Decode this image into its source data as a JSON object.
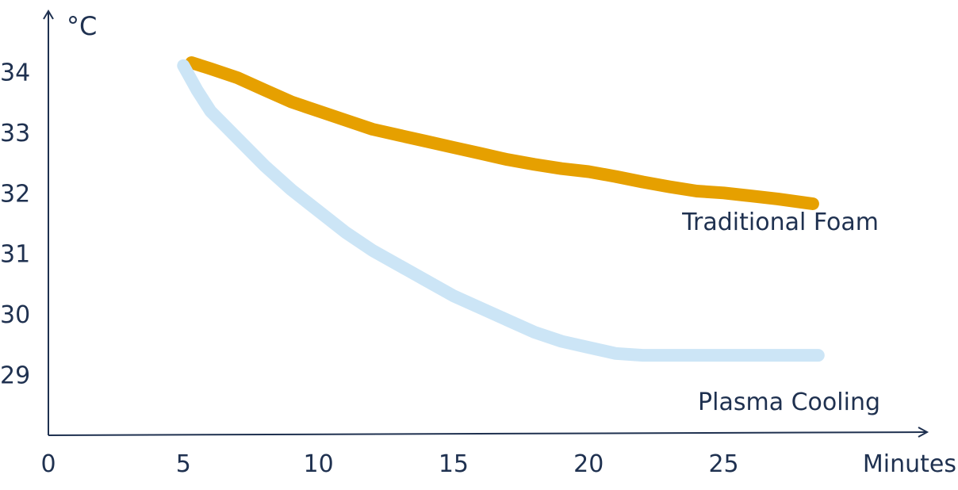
{
  "chart_data": {
    "type": "line",
    "title": "",
    "xlabel": "Minutes",
    "ylabel": "°C",
    "xlim": [
      0,
      32.5
    ],
    "ylim": [
      28,
      35
    ],
    "x_ticks": [
      0,
      5,
      10,
      15,
      20,
      25
    ],
    "x_tick_labels": [
      "0",
      "5",
      "10",
      "15",
      "20",
      "25"
    ],
    "y_ticks": [
      29,
      30,
      31,
      32,
      33,
      34
    ],
    "y_tick_labels": [
      "29",
      "30",
      "31",
      "32",
      "33",
      "34"
    ],
    "grid": false,
    "legend": "none; series labeled inline at line ends",
    "series": [
      {
        "name": "Traditional Foam",
        "color": "#e6a000",
        "x": [
          5.3,
          6,
          7,
          8,
          9,
          10,
          11,
          12,
          13,
          14,
          15,
          16,
          17,
          18,
          19,
          20,
          21,
          22,
          23,
          24,
          25,
          26,
          27,
          28.3
        ],
        "y": [
          34.15,
          34.05,
          33.9,
          33.7,
          33.5,
          33.35,
          33.2,
          33.05,
          32.95,
          32.85,
          32.75,
          32.65,
          32.55,
          32.47,
          32.4,
          32.35,
          32.27,
          32.18,
          32.1,
          32.03,
          32,
          31.95,
          31.9,
          31.82
        ]
      },
      {
        "name": "Plasma Cooling",
        "color": "#cce5f6",
        "x": [
          5,
          5.5,
          6,
          7,
          8,
          9,
          10,
          11,
          12,
          13,
          14,
          15,
          16,
          17,
          18,
          19,
          20,
          21,
          22,
          23,
          24,
          25,
          26,
          27,
          28.5
        ],
        "y": [
          34.1,
          33.7,
          33.35,
          32.9,
          32.45,
          32.05,
          31.7,
          31.35,
          31.05,
          30.8,
          30.55,
          30.3,
          30.1,
          29.9,
          29.7,
          29.55,
          29.45,
          29.35,
          29.32,
          29.32,
          29.32,
          29.32,
          29.32,
          29.32,
          29.32
        ]
      }
    ]
  }
}
